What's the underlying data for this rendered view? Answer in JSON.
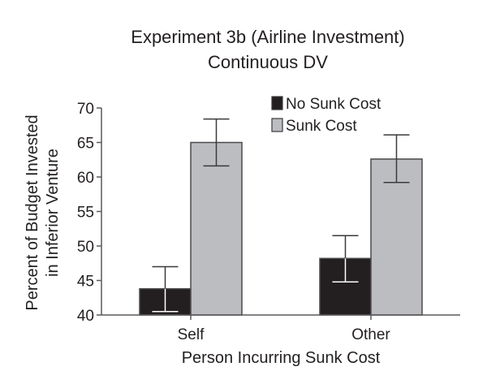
{
  "chart_data": {
    "type": "bar",
    "title": [
      "Experiment 3b (Airline Investment)",
      "Continuous DV"
    ],
    "xlabel": "Person Incurring Sunk Cost",
    "ylabel": [
      "Percent of Budget Invested",
      "in Inferior Venture"
    ],
    "categories": [
      "Self",
      "Other"
    ],
    "ylim": [
      40,
      70
    ],
    "yticks": [
      40,
      45,
      50,
      55,
      60,
      65,
      70
    ],
    "grid": false,
    "legend_position": "top-right",
    "series": [
      {
        "name": "No Sunk Cost",
        "color": "#231f20",
        "values": [
          43.8,
          48.2
        ],
        "error_low": [
          40.5,
          44.8
        ],
        "error_high": [
          47.0,
          51.5
        ]
      },
      {
        "name": "Sunk Cost",
        "color": "#bcbdc1",
        "values": [
          65.0,
          62.6
        ],
        "error_low": [
          61.6,
          59.2
        ],
        "error_high": [
          68.4,
          66.1
        ]
      }
    ]
  }
}
